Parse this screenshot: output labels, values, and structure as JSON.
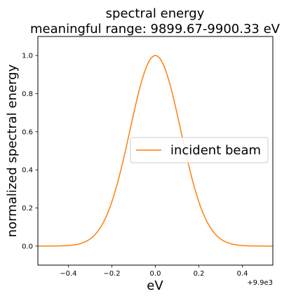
{
  "chart_data": {
    "type": "line",
    "title_line1": "spectral energy",
    "title_line2": "meaningful range: 9899.67-9900.33 eV",
    "xlabel": "eV",
    "ylabel": "normalized spectral energy",
    "x_offset_label": "+9.9e3",
    "xlim": [
      9899.46,
      9900.54
    ],
    "ylim": [
      -0.1,
      1.1
    ],
    "x_ticks": [
      9899.6,
      9899.8,
      9900.0,
      9900.2,
      9900.4
    ],
    "x_tick_labels": [
      "−0.4",
      "−0.2",
      "0.0",
      "0.2",
      "0.4"
    ],
    "y_ticks": [
      0.0,
      0.2,
      0.4,
      0.6,
      0.8,
      1.0
    ],
    "y_tick_labels": [
      "0.0",
      "0.2",
      "0.4",
      "0.6",
      "0.8",
      "1.0"
    ],
    "grid": false,
    "legend_position": "right",
    "series": [
      {
        "name": "incident beam",
        "color": "#ff7f0e",
        "curve": "gaussian",
        "center": 9900.0,
        "sigma": 0.117,
        "amplitude": 1.0
      }
    ]
  }
}
